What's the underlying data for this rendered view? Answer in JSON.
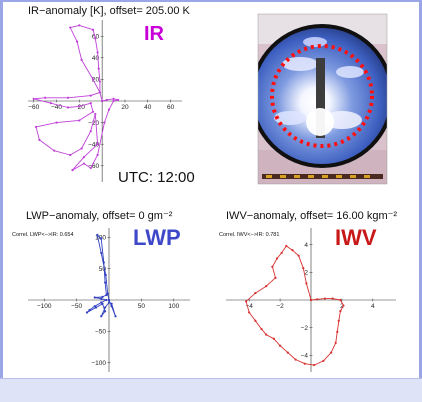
{
  "colors": {
    "ir": "#c040d8",
    "ir_label": "#c800d8",
    "lwp": "#3040c0",
    "lwp_label": "#3f48c8",
    "iwv": "#d83030",
    "iwv_label": "#c81818",
    "frame": "#9aa6e6"
  },
  "utc_label": "UTC: 12:00",
  "image_panel": {
    "description_icon": "sky-camera-fisheye-photo"
  },
  "chart_data": [
    {
      "type": "line",
      "polar_like": true,
      "header": "IR−anomaly [K], offset= 205.00 K",
      "big_label": "IR",
      "correlation_text": "",
      "xlim": [
        -65,
        70
      ],
      "ylim": [
        -75,
        75
      ],
      "xticks": [
        -60,
        -40,
        -20,
        20,
        40,
        60
      ],
      "yticks": [
        -60,
        -40,
        -20,
        20,
        40,
        60
      ],
      "xtick_labels": [
        "−60",
        "−40",
        "−20",
        "20",
        "40",
        "60"
      ],
      "ytick_labels": [
        "−60",
        "−40",
        "−20",
        "20",
        "40",
        "60"
      ],
      "points": [
        [
          0,
          0
        ],
        [
          -2,
          8
        ],
        [
          -8,
          20
        ],
        [
          -18,
          38
        ],
        [
          -22,
          55
        ],
        [
          -28,
          68
        ],
        [
          -20,
          70
        ],
        [
          -8,
          66
        ],
        [
          -6,
          58
        ],
        [
          -4,
          45
        ],
        [
          -3,
          30
        ],
        [
          -2,
          18
        ],
        [
          -2,
          8
        ],
        [
          -10,
          5
        ],
        [
          -30,
          3
        ],
        [
          -50,
          3
        ],
        [
          -60,
          2
        ],
        [
          -45,
          -2
        ],
        [
          -30,
          -6
        ],
        [
          -20,
          -5
        ],
        [
          -10,
          -2
        ],
        [
          -8,
          -10
        ],
        [
          -20,
          -18
        ],
        [
          -40,
          -20
        ],
        [
          -58,
          -24
        ],
        [
          -55,
          -36
        ],
        [
          -42,
          -46
        ],
        [
          -28,
          -50
        ],
        [
          -18,
          -44
        ],
        [
          -10,
          -28
        ],
        [
          -6,
          -12
        ],
        [
          -4,
          -40
        ],
        [
          -16,
          -52
        ],
        [
          -26,
          -64
        ],
        [
          -16,
          -58
        ],
        [
          -10,
          -62
        ],
        [
          -4,
          -50
        ],
        [
          2,
          -20
        ],
        [
          6,
          -8
        ],
        [
          10,
          0
        ],
        [
          14,
          1
        ],
        [
          10,
          2
        ],
        [
          4,
          1
        ],
        [
          0,
          0
        ]
      ]
    },
    {
      "type": "line",
      "polar_like": true,
      "header": "LWP−anomaly, offset= 0 gm⁻²",
      "big_label": "LWP",
      "correlation_text": "Correl. LWP<−>IR:  0.654",
      "xlim": [
        -125,
        125
      ],
      "ylim": [
        -115,
        115
      ],
      "xticks": [
        -100,
        -50,
        50,
        100
      ],
      "yticks": [
        -100,
        -50,
        50,
        100
      ],
      "xtick_labels": [
        "−100",
        "−50",
        "50",
        "100"
      ],
      "ytick_labels": [
        "−100",
        "−50",
        "50",
        "100"
      ],
      "points": [
        [
          0,
          0
        ],
        [
          -2,
          10
        ],
        [
          -5,
          40
        ],
        [
          -12,
          75
        ],
        [
          -18,
          104
        ],
        [
          -12,
          98
        ],
        [
          -8,
          60
        ],
        [
          -6,
          28
        ],
        [
          -4,
          8
        ],
        [
          -10,
          5
        ],
        [
          -22,
          4
        ],
        [
          -12,
          2
        ],
        [
          -4,
          0
        ],
        [
          -12,
          -4
        ],
        [
          -22,
          -10
        ],
        [
          -30,
          -16
        ],
        [
          -34,
          -20
        ],
        [
          -20,
          -12
        ],
        [
          -10,
          -6
        ],
        [
          -6,
          -18
        ],
        [
          -12,
          -26
        ],
        [
          -6,
          -12
        ],
        [
          0,
          -4
        ],
        [
          4,
          -6
        ],
        [
          10,
          -26
        ],
        [
          4,
          -10
        ],
        [
          0,
          0
        ]
      ]
    },
    {
      "type": "line",
      "polar_like": true,
      "header": "IWV−anomaly, offset=   16.00 kgm⁻²",
      "big_label": "IWV",
      "correlation_text": "Correl. IWV<−>IR:  0.781",
      "xlim": [
        -5.5,
        5.5
      ],
      "ylim": [
        -5.2,
        5.2
      ],
      "xticks": [
        -4,
        -2,
        2,
        4
      ],
      "yticks": [
        -4,
        -2,
        2,
        4
      ],
      "xtick_labels": [
        "−4",
        "−2",
        "2",
        "4"
      ],
      "ytick_labels": [
        "−4",
        "−2",
        "2",
        "4"
      ],
      "points": [
        [
          0,
          0
        ],
        [
          -0.3,
          1.2
        ],
        [
          -0.5,
          2.3
        ],
        [
          -0.8,
          3.2
        ],
        [
          -1.2,
          3.6
        ],
        [
          -1.6,
          3.9
        ],
        [
          -1.9,
          3.4
        ],
        [
          -2.2,
          3.0
        ],
        [
          -2.5,
          2.4
        ],
        [
          -2.3,
          1.6
        ],
        [
          -2.9,
          1.0
        ],
        [
          -3.6,
          0.5
        ],
        [
          -4.2,
          -0.1
        ],
        [
          -4.0,
          -0.9
        ],
        [
          -3.6,
          -1.5
        ],
        [
          -3.2,
          -2.1
        ],
        [
          -2.9,
          -2.5
        ],
        [
          -2.4,
          -2.8
        ],
        [
          -2.0,
          -3.3
        ],
        [
          -1.5,
          -3.8
        ],
        [
          -1.0,
          -4.3
        ],
        [
          -0.4,
          -4.6
        ],
        [
          0.2,
          -4.7
        ],
        [
          0.8,
          -4.4
        ],
        [
          1.3,
          -3.8
        ],
        [
          1.6,
          -3.1
        ],
        [
          1.7,
          -2.3
        ],
        [
          1.8,
          -1.5
        ],
        [
          1.9,
          -0.8
        ],
        [
          2.1,
          -0.4
        ],
        [
          1.9,
          0.0
        ],
        [
          1.4,
          0.1
        ],
        [
          0.9,
          0.1
        ],
        [
          0.4,
          0.05
        ],
        [
          0,
          0
        ]
      ]
    }
  ]
}
